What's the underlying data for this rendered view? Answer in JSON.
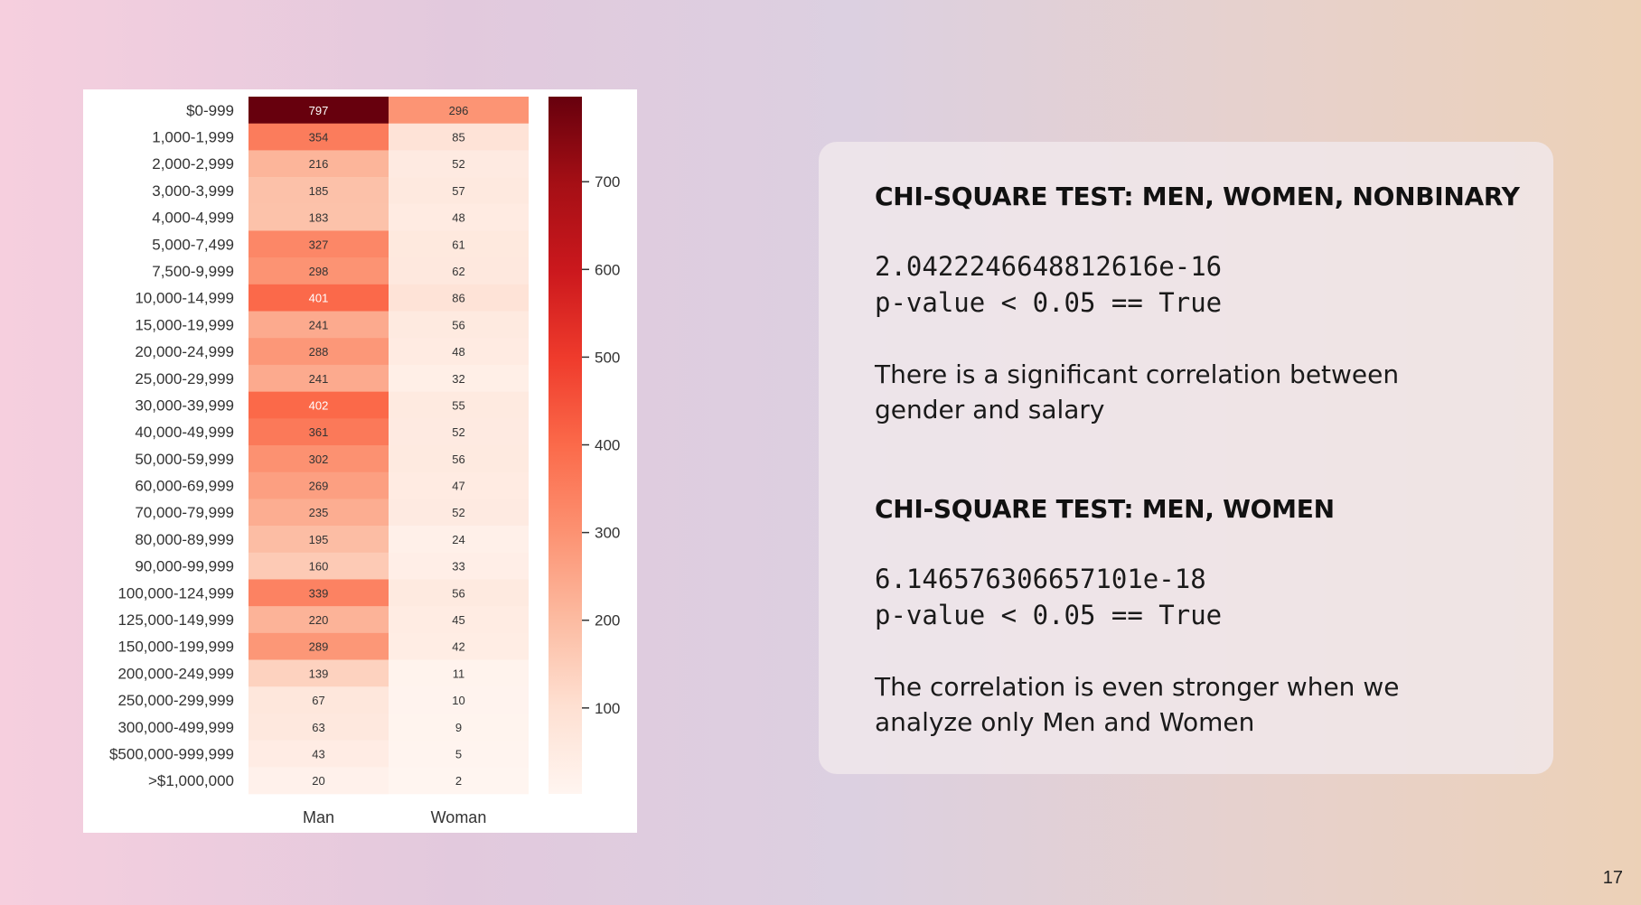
{
  "slide": {
    "page_number": "17"
  },
  "panel": {
    "test1": {
      "title": "CHI-SQUARE TEST: MEN, WOMEN, NONBINARY",
      "value": "2.0422246648812616e-16",
      "result": "p-value < 0.05 == True",
      "line1": "There is a significant correlation between",
      "line2": "gender and salary"
    },
    "test2": {
      "title": "CHI-SQUARE TEST: MEN, WOMEN",
      "value": "6.146576306657101e-18",
      "result": "p-value < 0.05 == True",
      "line1": "The correlation is even stronger when we",
      "line2": "analyze only Men and Women"
    }
  },
  "chart_data": {
    "type": "heatmap",
    "colormap": "Reds",
    "columns": [
      "Man",
      "Woman"
    ],
    "rows": [
      "$0-999",
      "1,000-1,999",
      "2,000-2,999",
      "3,000-3,999",
      "4,000-4,999",
      "5,000-7,499",
      "7,500-9,999",
      "10,000-14,999",
      "15,000-19,999",
      "20,000-24,999",
      "25,000-29,999",
      "30,000-39,999",
      "40,000-49,999",
      "50,000-59,999",
      "60,000-69,999",
      "70,000-79,999",
      "80,000-89,999",
      "90,000-99,999",
      "100,000-124,999",
      "125,000-149,999",
      "150,000-199,999",
      "200,000-249,999",
      "250,000-299,999",
      "300,000-499,999",
      "$500,000-999,999",
      ">$1,000,000"
    ],
    "values": [
      [
        797,
        296
      ],
      [
        354,
        85
      ],
      [
        216,
        52
      ],
      [
        185,
        57
      ],
      [
        183,
        48
      ],
      [
        327,
        61
      ],
      [
        298,
        62
      ],
      [
        401,
        86
      ],
      [
        241,
        56
      ],
      [
        288,
        48
      ],
      [
        241,
        32
      ],
      [
        402,
        55
      ],
      [
        361,
        52
      ],
      [
        302,
        56
      ],
      [
        269,
        47
      ],
      [
        235,
        52
      ],
      [
        195,
        24
      ],
      [
        160,
        33
      ],
      [
        339,
        56
      ],
      [
        220,
        45
      ],
      [
        289,
        42
      ],
      [
        139,
        11
      ],
      [
        67,
        10
      ],
      [
        63,
        9
      ],
      [
        43,
        5
      ],
      [
        20,
        2
      ]
    ],
    "colorbar": {
      "range": [
        2,
        797
      ],
      "ticks": [
        100,
        200,
        300,
        400,
        500,
        600,
        700
      ]
    }
  }
}
